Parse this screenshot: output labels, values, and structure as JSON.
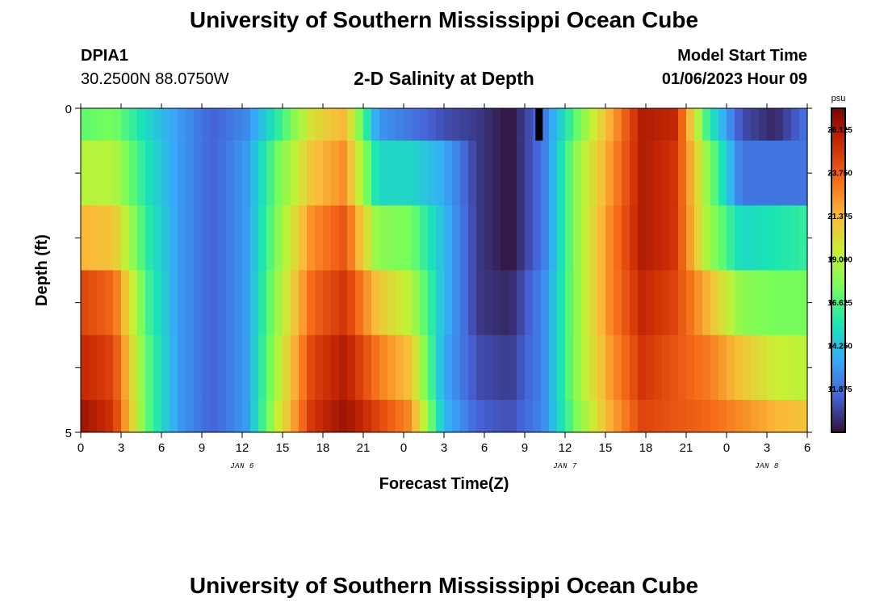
{
  "header": {
    "title": "University of Southern Mississippi Ocean Cube",
    "station": "DPIA1",
    "coordinates": "30.2500N  88.0750W",
    "plot_title": "2-D Salinity at Depth",
    "model_start_label": "Model Start Time",
    "model_start_time": "01/06/2023 Hour 09"
  },
  "footer": {
    "title": "University of Southern Mississippi Ocean Cube"
  },
  "chart_data": {
    "type": "heatmap",
    "title": "2-D Salinity at Depth",
    "xlabel": "Forecast Time(Z)",
    "ylabel": "Depth (ft)",
    "x_tick_labels": [
      "0",
      "3",
      "6",
      "9",
      "12",
      "15",
      "18",
      "21",
      "0",
      "3",
      "6",
      "9",
      "12",
      "15",
      "18",
      "21",
      "0",
      "3",
      "6"
    ],
    "y_tick_labels": [
      "0",
      "5"
    ],
    "ylim": [
      0,
      5
    ],
    "date_labels": [
      {
        "label": "JAN 6",
        "hour": 12
      },
      {
        "label": "JAN 7",
        "hour": 36
      },
      {
        "label": "JAN 8",
        "hour": 51
      }
    ],
    "colorbar": {
      "unit": "psu",
      "min": 9.5,
      "max": 27.3,
      "tick_labels": [
        "26.125",
        "23.750",
        "21.375",
        "19.000",
        "16.625",
        "14.250",
        "11.875"
      ],
      "tick_values": [
        26.125,
        23.75,
        21.375,
        19.0,
        16.625,
        14.25,
        11.875
      ]
    },
    "x_hours_from_jan6_00z": [
      0,
      3,
      6,
      9,
      12,
      15,
      18,
      21,
      24,
      27,
      30,
      33,
      36,
      39,
      42,
      45,
      48,
      51,
      54
    ],
    "depth_layers_ft": [
      0.25,
      1.0,
      2.0,
      3.0,
      4.0,
      4.75
    ],
    "salinity_keyframes_psu": [
      [
        17.0,
        17.5,
        15.0,
        13.0,
        11.5,
        12.5,
        16.0,
        20.0,
        21.5,
        13.0,
        12.0,
        11.0,
        10.5,
        9.5,
        12.0,
        17.0,
        21.5,
        26.0,
        25.5,
        16.0,
        11.0,
        10.0,
        12.0
      ],
      [
        19.0,
        19.0,
        15.5,
        13.0,
        11.5,
        13.0,
        17.5,
        21.0,
        22.5,
        15.0,
        15.0,
        13.5,
        10.5,
        9.5,
        12.0,
        18.0,
        22.0,
        26.0,
        25.0,
        18.0,
        12.0,
        12.0,
        12.0
      ],
      [
        21.5,
        21.0,
        16.0,
        13.0,
        11.5,
        13.0,
        18.0,
        22.5,
        24.0,
        18.0,
        17.5,
        14.0,
        10.5,
        9.5,
        12.0,
        18.0,
        22.5,
        26.0,
        25.0,
        18.5,
        15.0,
        15.5,
        16.0
      ],
      [
        24.5,
        23.5,
        16.5,
        13.0,
        11.5,
        13.0,
        18.5,
        23.5,
        25.0,
        21.0,
        19.0,
        14.0,
        10.5,
        10.0,
        12.5,
        18.0,
        22.5,
        25.5,
        24.5,
        21.5,
        18.0,
        17.5,
        17.5
      ],
      [
        25.5,
        24.5,
        17.0,
        13.0,
        11.5,
        13.0,
        19.0,
        24.5,
        26.0,
        23.0,
        21.0,
        13.5,
        11.0,
        10.5,
        12.5,
        18.0,
        22.0,
        25.0,
        24.0,
        23.0,
        21.0,
        19.5,
        19.0
      ],
      [
        26.5,
        25.0,
        17.0,
        13.0,
        11.5,
        13.0,
        19.5,
        25.0,
        26.5,
        24.5,
        22.5,
        14.0,
        11.5,
        11.0,
        12.5,
        17.5,
        21.5,
        24.5,
        24.0,
        23.5,
        22.5,
        21.5,
        21.0
      ]
    ]
  },
  "colors": {
    "colormap": [
      "#30123b",
      "#4662d7",
      "#36aaf9",
      "#1ae4b6",
      "#72fe5e",
      "#c8ef34",
      "#faba39",
      "#f66b19",
      "#ca2a04",
      "#7a0403"
    ],
    "missing_cell": "#000000"
  }
}
